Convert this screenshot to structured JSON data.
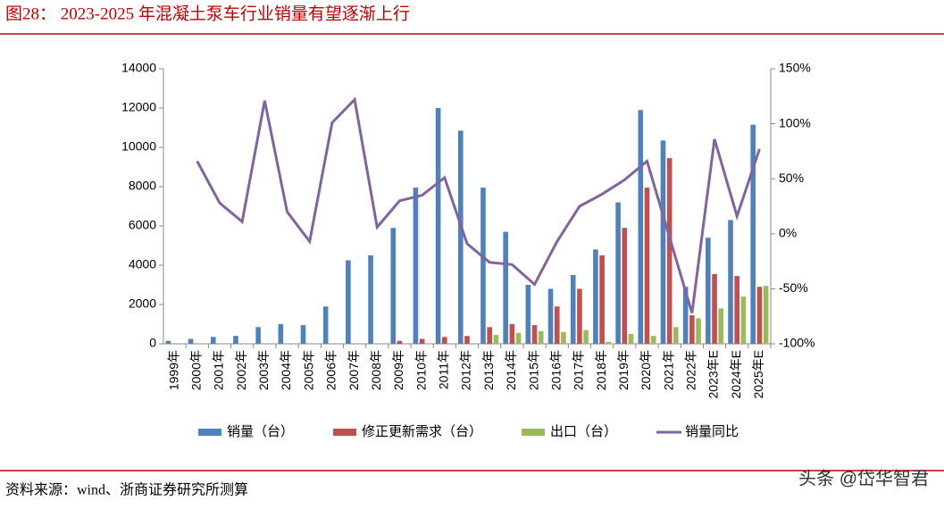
{
  "header": {
    "title": "图28：  2023-2025 年混凝土泵车行业销量有望逐渐上行"
  },
  "footer": {
    "source": "资料来源：wind、浙商证券研究所测算",
    "watermark": "头条 @岱华智君"
  },
  "chart_data": {
    "type": "bar",
    "categories": [
      "1999年",
      "2000年",
      "2001年",
      "2002年",
      "2003年",
      "2004年",
      "2005年",
      "2006年",
      "2007年",
      "2008年",
      "2009年",
      "2010年",
      "2011年",
      "2012年",
      "2013年",
      "2014年",
      "2015年",
      "2016年",
      "2017年",
      "2018年",
      "2019年",
      "2020年",
      "2021年",
      "2022年",
      "2023年E",
      "2024年E",
      "2025年E"
    ],
    "series": [
      {
        "name": "销量（台）",
        "type": "bar",
        "color": "#4f81bd",
        "values": [
          150,
          250,
          350,
          400,
          850,
          1000,
          950,
          1900,
          4250,
          4500,
          5900,
          7950,
          12000,
          10850,
          7950,
          5700,
          3000,
          2800,
          3500,
          4800,
          7200,
          11900,
          10350,
          2900,
          5400,
          6300,
          11150
        ]
      },
      {
        "name": "修正更新需求（台）",
        "type": "bar",
        "color": "#c0504d",
        "values": [
          null,
          null,
          null,
          null,
          null,
          null,
          null,
          null,
          null,
          null,
          150,
          250,
          350,
          400,
          850,
          1000,
          950,
          1900,
          2800,
          4500,
          5900,
          7950,
          9450,
          1450,
          3550,
          3450,
          2900
        ]
      },
      {
        "name": "出口（台）",
        "type": "bar",
        "color": "#9bbb59",
        "values": [
          null,
          null,
          null,
          null,
          null,
          null,
          null,
          null,
          null,
          null,
          null,
          null,
          null,
          null,
          450,
          550,
          650,
          600,
          700,
          100,
          500,
          400,
          850,
          1300,
          1800,
          2400,
          2950
        ]
      },
      {
        "name": "销量同比",
        "type": "line",
        "axis": "y2",
        "color": "#8064a2",
        "values": [
          null,
          66,
          28,
          11,
          121,
          20,
          -7,
          101,
          122,
          6,
          30,
          35,
          51,
          -9,
          -26,
          -28,
          -46,
          -7,
          25,
          36,
          49,
          66,
          -3,
          -72,
          86,
          16,
          77
        ]
      }
    ],
    "ylim": [
      0,
      14000
    ],
    "yticks": [
      0,
      2000,
      4000,
      6000,
      8000,
      10000,
      12000,
      14000
    ],
    "y2lim": [
      -100,
      150
    ],
    "y2ticks": [
      {
        "value": -100,
        "label": "-100%"
      },
      {
        "value": -50,
        "label": "-50%"
      },
      {
        "value": 0,
        "label": "0%"
      },
      {
        "value": 50,
        "label": "50%"
      },
      {
        "value": 100,
        "label": "100%"
      },
      {
        "value": 150,
        "label": "150%"
      }
    ],
    "legend": "bottom"
  }
}
